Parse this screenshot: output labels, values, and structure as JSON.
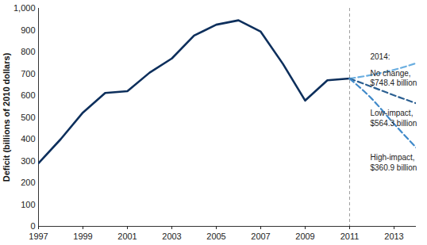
{
  "chart_data": {
    "type": "line",
    "y_label": "Deficit (billions of 2010 dollars)",
    "annotations": [
      "2014:"
    ],
    "x": [
      1997,
      1998,
      1999,
      2000,
      2001,
      2002,
      2003,
      2004,
      2005,
      2006,
      2007,
      2008,
      2009,
      2010,
      2011,
      2012,
      2013,
      2014
    ],
    "series": [
      {
        "color": "#0d2f5c",
        "line_style": "solid",
        "values": [
          290,
          400,
          522,
          612,
          620,
          705,
          770,
          875,
          925,
          945,
          893,
          745,
          577,
          670,
          678,
          null,
          null,
          null
        ]
      },
      {
        "name": "No change, $748.4 billion",
        "color": "#6aaee0",
        "line_style": "dashed",
        "values": [
          null,
          null,
          null,
          null,
          null,
          null,
          null,
          null,
          null,
          null,
          null,
          null,
          null,
          null,
          678,
          695,
          718,
          748.4
        ]
      },
      {
        "name": "Low-impact, $564.3 billion",
        "color": "#2b5f91",
        "line_style": "dashed",
        "values": [
          null,
          null,
          null,
          null,
          null,
          null,
          null,
          null,
          null,
          null,
          null,
          null,
          null,
          null,
          678,
          640,
          601,
          564.3
        ]
      },
      {
        "name": "High-impact, $360.9 billion",
        "color": "#3f89c9",
        "line_style": "dashed",
        "values": [
          null,
          null,
          null,
          null,
          null,
          null,
          null,
          null,
          null,
          null,
          null,
          null,
          null,
          null,
          678,
          585,
          470,
          360.9
        ]
      }
    ],
    "vertical_line": 2011,
    "xlim": [
      1997,
      2014
    ],
    "xticks": [
      1997,
      1999,
      2001,
      2003,
      2005,
      2007,
      2009,
      2011,
      2013
    ],
    "ylim": [
      0,
      1000
    ],
    "yticks": [
      0,
      100,
      200,
      300,
      400,
      500,
      600,
      700,
      800,
      900,
      {
        "value": 1000,
        "label": "1,000"
      }
    ],
    "grid": false
  }
}
